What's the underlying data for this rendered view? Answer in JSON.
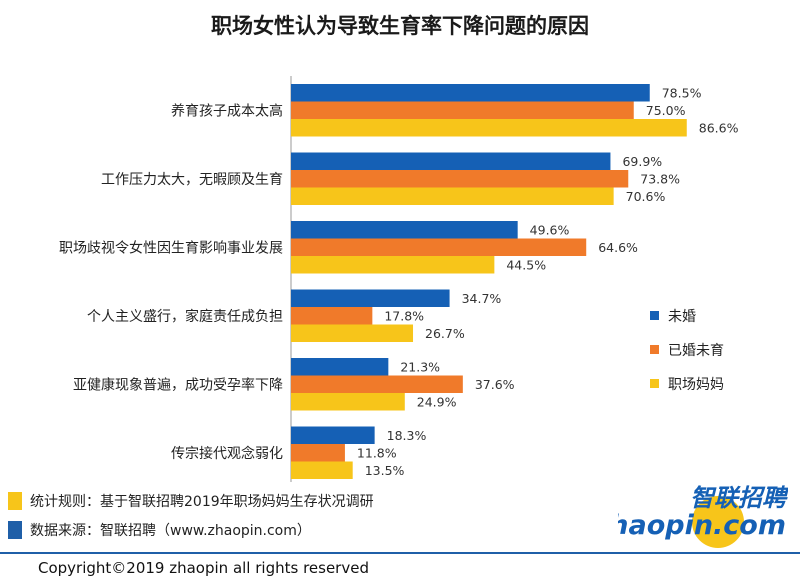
{
  "title": "职场女性认为导致生育率下降问题的原因",
  "colors": {
    "unmarried": "#1560b5",
    "married_no_child": "#f07a2a",
    "mother": "#f7c51a",
    "note1_square": "#f7c51a",
    "note2_square": "#1f5fa8"
  },
  "chart_data": {
    "type": "bar",
    "orientation": "horizontal",
    "title": "职场女性认为导致生育率下降问题的原因",
    "categories": [
      "养育孩子成本太高",
      "工作压力太大，无暇顾及生育",
      "职场歧视令女性因生育影响事业发展",
      "个人主义盛行，家庭责任成负担",
      "亚健康现象普遍，成功受孕率下降",
      "传宗接代观念弱化"
    ],
    "series": [
      {
        "name": "未婚",
        "values": [
          78.5,
          69.9,
          49.6,
          34.7,
          21.3,
          18.3
        ],
        "color": "#1560b5"
      },
      {
        "name": "已婚未育",
        "values": [
          75.0,
          73.8,
          64.6,
          17.8,
          37.6,
          11.8
        ],
        "color": "#f07a2a"
      },
      {
        "name": "职场妈妈",
        "values": [
          86.6,
          70.6,
          44.5,
          26.7,
          24.9,
          13.5
        ],
        "color": "#f7c51a"
      }
    ],
    "value_suffix": "%",
    "legend_position": "right",
    "grid": false
  },
  "notes": {
    "rule": "统计规则：基于智联招聘2019年职场妈妈生存状况调研",
    "source": "数据来源：智联招聘（www.zhaopin.com）"
  },
  "logo": {
    "cn": "智联招聘",
    "en": "zhaopin.com"
  },
  "copyright": "Copyright©2019 zhaopin all rights reserved"
}
